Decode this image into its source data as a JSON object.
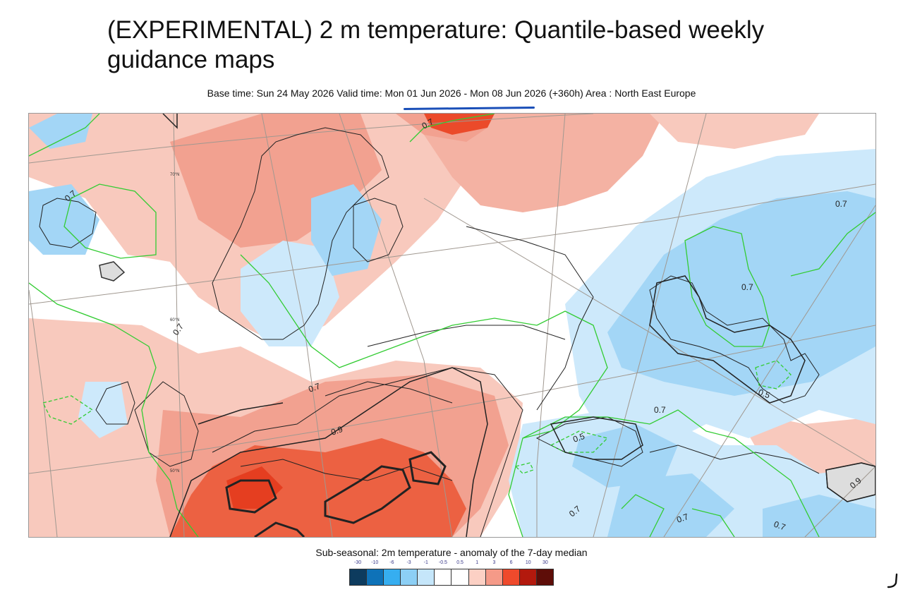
{
  "header": {
    "title": "(EXPERIMENTAL) 2 m temperature: Quantile-based weekly guidance maps",
    "subtitle": "Base time: Sun 24 May 2026 Valid time: Mon 01 Jun 2026 - Mon 08 Jun 2026 (+360h) Area : North East Europe"
  },
  "map": {
    "area": "North East Europe",
    "contour_labels": [
      "0.7",
      "0.7",
      "0.7",
      "0.7",
      "0.7",
      "0.7",
      "0.7",
      "0.7",
      "0.7",
      "0.7",
      "0.9",
      "0.9",
      "0.5",
      "0.5"
    ],
    "lat_labels": [
      "70°N",
      "60°N",
      "50°N"
    ]
  },
  "legend": {
    "title": "Sub-seasonal: 2m temperature - anomaly of the 7-day median",
    "ticks": [
      "-30",
      "-10",
      "-6",
      "-3",
      "-1",
      "-0.5",
      "0.5",
      "1",
      "3",
      "6",
      "10",
      "30"
    ],
    "colors": [
      "#0d3b5e",
      "#0e72b8",
      "#36aef0",
      "#8ccff5",
      "#c5e6fa",
      "#ffffff",
      "#ffffff",
      "#fcd0c4",
      "#f59a88",
      "#ef4a2c",
      "#b3190d",
      "#5e0d08"
    ]
  },
  "colors": {
    "warm_light": "#f8c9bd",
    "warm_mid": "#f2a190",
    "warm_strong": "#eb5a3a",
    "cool_light": "#cde9fb",
    "cool_mid": "#a3d6f6",
    "contour_green": "#33cc33",
    "underline": "#1a4fb8"
  }
}
